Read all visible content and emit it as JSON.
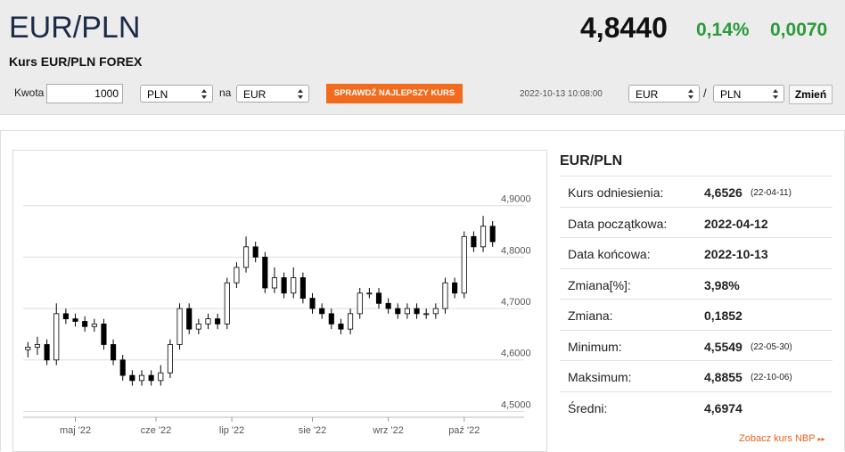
{
  "header": {
    "title": "EUR/PLN",
    "subtitle": "Kurs EUR/PLN FOREX",
    "price": "4,8440",
    "change_pct": "0,14%",
    "change": "0,0070"
  },
  "converter": {
    "amount_label": "Kwota",
    "amount": "1000",
    "from": "PLN",
    "to_label": "na",
    "to": "EUR",
    "button": "SPRAWDŹ NAJLEPSZY KURS"
  },
  "pair_selector": {
    "timestamp": "2022-10-13 10:08:00",
    "base": "EUR",
    "separator": "/",
    "quote": "PLN",
    "button": "Zmień"
  },
  "stats": {
    "title": "EUR/PLN",
    "rows": [
      [
        "Kurs odniesienia:",
        "4,6526",
        "(22-04-11)"
      ],
      [
        "Data początkowa:",
        "2022-04-12"
      ],
      [
        "Data końcowa:",
        "2022-10-13"
      ],
      [
        "Zmiana[%]:",
        "3,98%"
      ],
      [
        "Zmiana:",
        "0,1852"
      ],
      [
        "Minimum:",
        "4,5549",
        "(22-05-30)"
      ],
      [
        "Maksimum:",
        "4,8855",
        "(22-10-06)"
      ],
      [
        "Średni:",
        "4,6974"
      ]
    ],
    "link": "Zobacz kurs NBP"
  },
  "chart_data": {
    "type": "candlestick",
    "open": [
      4.62,
      4.625,
      4.63,
      4.6,
      4.69,
      4.68,
      4.675,
      4.665,
      4.67,
      4.63,
      4.6,
      4.57,
      4.56,
      4.57,
      4.56,
      4.575,
      4.63,
      4.7,
      4.66,
      4.67,
      4.68,
      4.67,
      4.75,
      4.78,
      4.82,
      4.8,
      4.74,
      4.76,
      4.73,
      4.76,
      4.72,
      4.7,
      4.69,
      4.67,
      4.66,
      4.69,
      4.73,
      4.73,
      4.71,
      4.7,
      4.69,
      4.7,
      4.69,
      4.69,
      4.7,
      4.75,
      4.73,
      4.84,
      4.82,
      4.86
    ],
    "high": [
      4.635,
      4.645,
      4.64,
      4.71,
      4.7,
      4.69,
      4.685,
      4.68,
      4.68,
      4.64,
      4.61,
      4.58,
      4.58,
      4.58,
      4.59,
      4.64,
      4.71,
      4.71,
      4.68,
      4.69,
      4.69,
      4.76,
      4.79,
      4.84,
      4.83,
      4.81,
      4.78,
      4.77,
      4.78,
      4.77,
      4.73,
      4.71,
      4.7,
      4.68,
      4.7,
      4.74,
      4.74,
      4.74,
      4.72,
      4.71,
      4.71,
      4.71,
      4.7,
      4.71,
      4.76,
      4.76,
      4.85,
      4.85,
      4.88,
      4.87
    ],
    "low": [
      4.605,
      4.61,
      4.59,
      4.59,
      4.67,
      4.665,
      4.655,
      4.655,
      4.62,
      4.59,
      4.56,
      4.55,
      4.55,
      4.55,
      4.55,
      4.565,
      4.62,
      4.65,
      4.65,
      4.66,
      4.66,
      4.66,
      4.74,
      4.77,
      4.79,
      4.73,
      4.73,
      4.72,
      4.72,
      4.71,
      4.69,
      4.68,
      4.66,
      4.65,
      4.65,
      4.68,
      4.72,
      4.7,
      4.69,
      4.68,
      4.68,
      4.68,
      4.68,
      4.68,
      4.69,
      4.72,
      4.72,
      4.81,
      4.81,
      4.82
    ],
    "close": [
      4.625,
      4.63,
      4.6,
      4.69,
      4.68,
      4.675,
      4.665,
      4.67,
      4.63,
      4.6,
      4.57,
      4.56,
      4.57,
      4.56,
      4.575,
      4.63,
      4.7,
      4.66,
      4.67,
      4.68,
      4.67,
      4.75,
      4.78,
      4.82,
      4.8,
      4.74,
      4.76,
      4.73,
      4.76,
      4.72,
      4.7,
      4.69,
      4.67,
      4.66,
      4.69,
      4.73,
      4.73,
      4.71,
      4.7,
      4.69,
      4.7,
      4.69,
      4.69,
      4.7,
      4.75,
      4.73,
      4.84,
      4.82,
      4.86,
      4.83
    ],
    "xlim": [
      -0.5,
      49.5
    ],
    "xticks": [
      {
        "value": 5,
        "label": "maj '22"
      },
      {
        "value": 13.5,
        "label": "cze '22"
      },
      {
        "value": 21.5,
        "label": "lip '22"
      },
      {
        "value": 30,
        "label": "sie '22"
      },
      {
        "value": 38,
        "label": "wrz '22"
      },
      {
        "value": 46,
        "label": "paź '22"
      }
    ],
    "ylim": [
      4.48,
      5.0
    ],
    "yticks": [
      {
        "value": 4.5,
        "label": "4,5000"
      },
      {
        "value": 4.6,
        "label": "4,6000"
      },
      {
        "value": 4.7,
        "label": "4,7000"
      },
      {
        "value": 4.8,
        "label": "4,8000"
      },
      {
        "value": 4.9,
        "label": "4,9000"
      }
    ],
    "grid": true,
    "up_color": "#ffffff",
    "down_color": "#000000"
  }
}
